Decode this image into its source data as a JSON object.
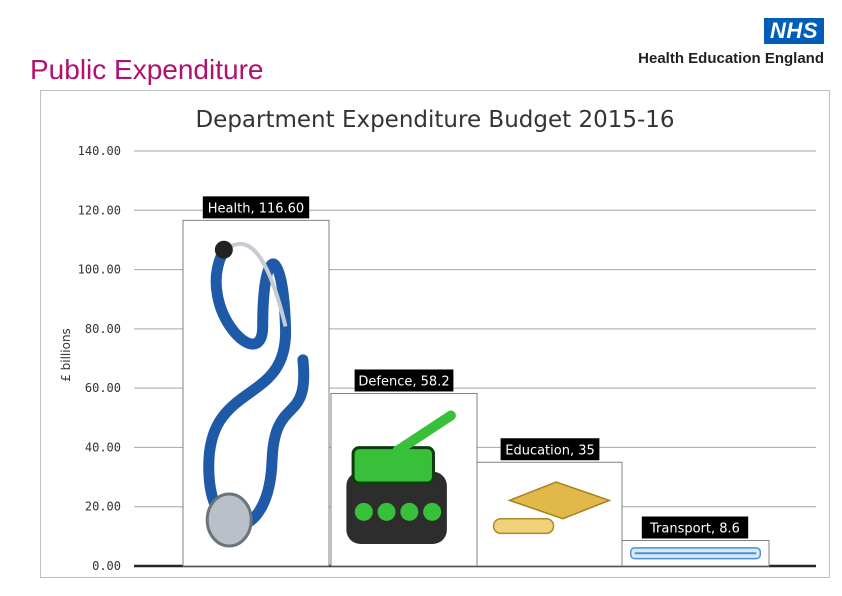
{
  "header": {
    "page_title": "Public Expenditure",
    "logo_badge": "NHS",
    "logo_org": "Health Education England"
  },
  "colors": {
    "page_title": "#b0106e",
    "nhs_blue": "#005eb8",
    "gridline": "#a6a6a6",
    "label_bg": "#000000"
  },
  "chart_data": {
    "type": "bar",
    "title": "Department Expenditure Budget 2015-16",
    "ylabel": "£ billions",
    "xlabel": "",
    "ylim": [
      0,
      140
    ],
    "yticks": [
      "0.00",
      "20.00",
      "40.00",
      "60.00",
      "80.00",
      "100.00",
      "120.00",
      "140.00"
    ],
    "grid": true,
    "categories": [
      "Health",
      "Defence",
      "Education",
      "Transport"
    ],
    "values": [
      116.6,
      58.2,
      35,
      8.6
    ],
    "data_labels": [
      "Health, 116.60",
      "Defence, 58.2",
      "Education, 35",
      "Transport, 8.6"
    ],
    "bar_images": [
      "stethoscope-icon",
      "tank-icon",
      "graduation-cap-icon",
      "train-icon"
    ]
  }
}
